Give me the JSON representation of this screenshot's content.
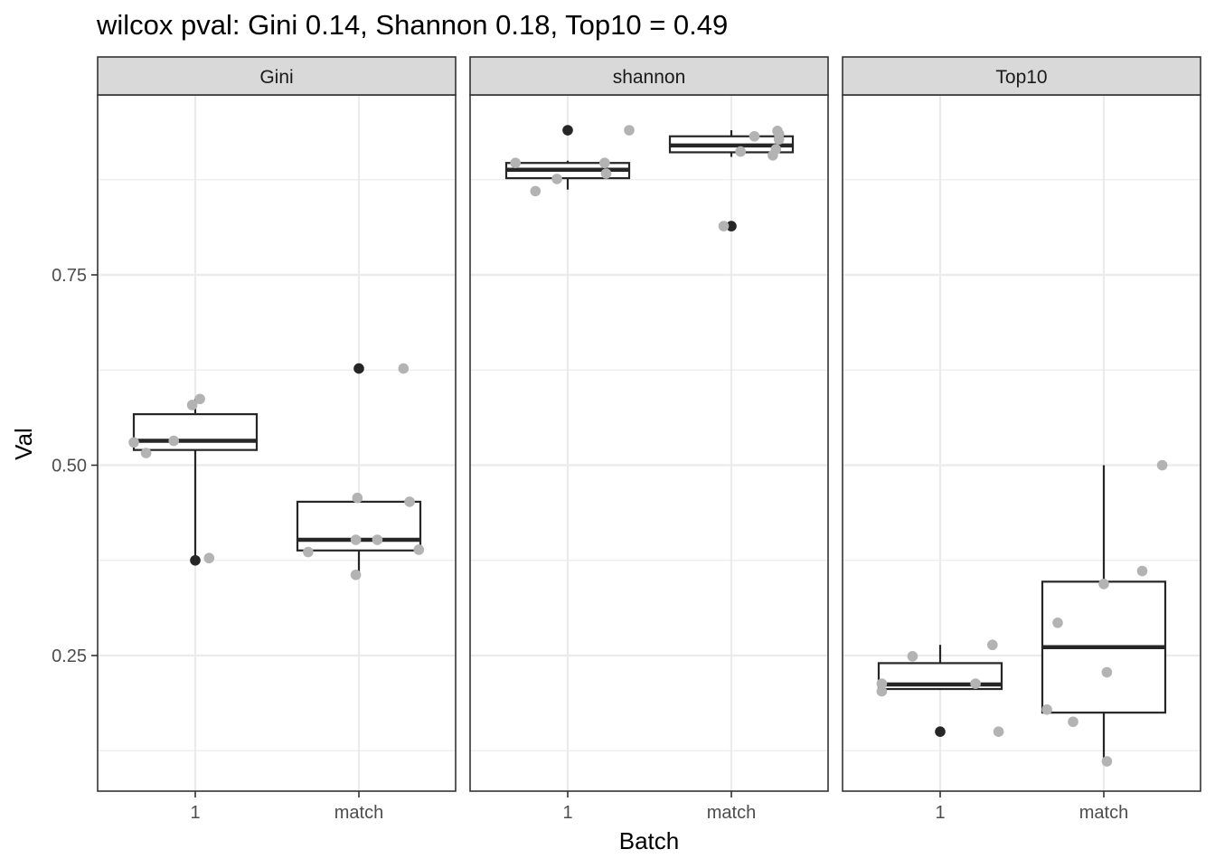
{
  "chart_data": {
    "type": "box",
    "title": "wilcox pval: Gini 0.14, Shannon 0.18, Top10 = 0.49",
    "xlabel": "Batch",
    "ylabel": "Val",
    "ylim": [
      0.07,
      0.98
    ],
    "y_ticks": [
      0.25,
      0.5,
      0.75
    ],
    "y_tick_labels": [
      "0.25",
      "0.50",
      "0.75"
    ],
    "categories": [
      "1",
      "match"
    ],
    "grid": true,
    "theme": "bw",
    "colors": {
      "box_stroke": "#262626",
      "point_jitter": "#b3b3b3",
      "point_outlier": "#262626",
      "strip_fill": "#d9d9d9",
      "grid_major": "#ebebeb",
      "panel_border": "#333333"
    },
    "panels": [
      {
        "name": "Gini",
        "boxes": [
          {
            "category": "1",
            "lower": 0.375,
            "q1": 0.52,
            "median": 0.532,
            "q3": 0.567,
            "upper": 0.587,
            "outliers": [
              0.375
            ],
            "points": [
              [
                -0.4,
                0.53
              ],
              [
                -0.32,
                0.516
              ],
              [
                -0.14,
                0.532
              ],
              [
                -0.02,
                0.579
              ],
              [
                0.03,
                0.587
              ],
              [
                0.09,
                0.378
              ]
            ]
          },
          {
            "category": "match",
            "lower": 0.357,
            "q1": 0.388,
            "median": 0.402,
            "q3": 0.452,
            "upper": 0.456,
            "outliers": [
              0.627
            ],
            "points": [
              [
                -0.33,
                0.386
              ],
              [
                -0.02,
                0.356
              ],
              [
                -0.01,
                0.457
              ],
              [
                -0.02,
                0.402
              ],
              [
                0.12,
                0.402
              ],
              [
                0.29,
                0.627
              ],
              [
                0.33,
                0.452
              ],
              [
                0.39,
                0.389
              ]
            ]
          }
        ]
      },
      {
        "name": "shannon",
        "boxes": [
          {
            "category": "1",
            "lower": 0.862,
            "q1": 0.877,
            "median": 0.888,
            "q3": 0.897,
            "upper": 0.9,
            "outliers": [
              0.94
            ],
            "points": [
              [
                -0.34,
                0.897
              ],
              [
                -0.21,
                0.86
              ],
              [
                -0.07,
                0.876
              ],
              [
                0.24,
                0.897
              ],
              [
                0.25,
                0.883
              ],
              [
                0.4,
                0.94
              ]
            ]
          },
          {
            "category": "match",
            "lower": 0.905,
            "q1": 0.911,
            "median": 0.92,
            "q3": 0.932,
            "upper": 0.94,
            "outliers": [
              0.814
            ],
            "points": [
              [
                -0.05,
                0.814
              ],
              [
                0.06,
                0.912
              ],
              [
                0.15,
                0.932
              ],
              [
                0.27,
                0.907
              ],
              [
                0.29,
                0.915
              ],
              [
                0.3,
                0.939
              ],
              [
                0.31,
                0.935
              ],
              [
                0.31,
                0.928
              ]
            ]
          }
        ]
      },
      {
        "name": "Top10",
        "boxes": [
          {
            "category": "1",
            "lower": 0.206,
            "q1": 0.206,
            "median": 0.212,
            "q3": 0.24,
            "upper": 0.264,
            "outliers": [
              0.15
            ],
            "points": [
              [
                -0.38,
                0.213
              ],
              [
                -0.38,
                0.203
              ],
              [
                -0.18,
                0.249
              ],
              [
                0.23,
                0.213
              ],
              [
                0.34,
                0.264
              ],
              [
                0.38,
                0.15
              ]
            ]
          },
          {
            "category": "match",
            "lower": 0.111,
            "q1": 0.175,
            "median": 0.261,
            "q3": 0.347,
            "upper": 0.5,
            "outliers": [],
            "points": [
              [
                -0.37,
                0.179
              ],
              [
                -0.3,
                0.293
              ],
              [
                -0.2,
                0.163
              ],
              [
                0.0,
                0.344
              ],
              [
                0.02,
                0.111
              ],
              [
                0.02,
                0.228
              ],
              [
                0.25,
                0.361
              ],
              [
                0.38,
                0.5
              ]
            ]
          }
        ]
      }
    ]
  }
}
